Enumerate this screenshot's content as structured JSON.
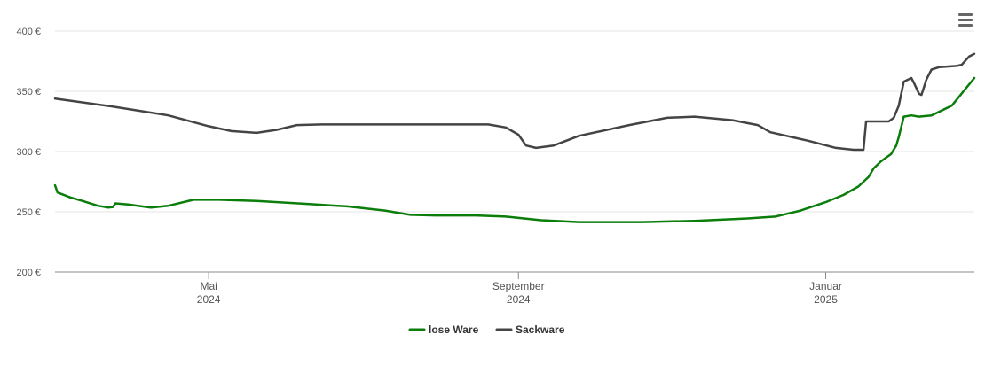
{
  "chart_data": {
    "type": "line",
    "title": "",
    "xlabel": "",
    "ylabel": "",
    "x_range": [
      "2024-03-01",
      "2025-03-01"
    ],
    "ylim": [
      200,
      400
    ],
    "y_ticks": [
      {
        "value": 200,
        "label": "200 €"
      },
      {
        "value": 250,
        "label": "250 €"
      },
      {
        "value": 300,
        "label": "300 €"
      },
      {
        "value": 350,
        "label": "350 €"
      },
      {
        "value": 400,
        "label": "400 €"
      }
    ],
    "x_ticks": [
      {
        "date": "2024-05-01",
        "line1": "Mai",
        "line2": "2024"
      },
      {
        "date": "2024-09-01",
        "line1": "September",
        "line2": "2024"
      },
      {
        "date": "2025-01-01",
        "line1": "Januar",
        "line2": "2025"
      }
    ],
    "grid": true,
    "legend_position": "bottom-center",
    "series": [
      {
        "name": "lose Ware",
        "color": "#0a7d0a",
        "points": [
          [
            "2024-03-01",
            272
          ],
          [
            "2024-03-02",
            266
          ],
          [
            "2024-03-07",
            262
          ],
          [
            "2024-03-12",
            259
          ],
          [
            "2024-03-18",
            255
          ],
          [
            "2024-03-22",
            253.5
          ],
          [
            "2024-03-24",
            254
          ],
          [
            "2024-03-25",
            257
          ],
          [
            "2024-03-30",
            256
          ],
          [
            "2024-04-08",
            253.5
          ],
          [
            "2024-04-15",
            255
          ],
          [
            "2024-04-25",
            260
          ],
          [
            "2024-05-05",
            260
          ],
          [
            "2024-05-20",
            259
          ],
          [
            "2024-06-10",
            256.5
          ],
          [
            "2024-06-25",
            254.5
          ],
          [
            "2024-07-10",
            251
          ],
          [
            "2024-07-20",
            247.5
          ],
          [
            "2024-07-30",
            247
          ],
          [
            "2024-08-15",
            247
          ],
          [
            "2024-08-27",
            246
          ],
          [
            "2024-09-10",
            243
          ],
          [
            "2024-09-25",
            241.5
          ],
          [
            "2024-10-20",
            241.5
          ],
          [
            "2024-11-10",
            242.5
          ],
          [
            "2024-12-01",
            244.5
          ],
          [
            "2024-12-12",
            246
          ],
          [
            "2024-12-22",
            251
          ],
          [
            "2025-01-01",
            258
          ],
          [
            "2025-01-08",
            264
          ],
          [
            "2025-01-14",
            271
          ],
          [
            "2025-01-18",
            279
          ],
          [
            "2025-01-20",
            286
          ],
          [
            "2025-01-23",
            292
          ],
          [
            "2025-01-27",
            298
          ],
          [
            "2025-01-29",
            305
          ],
          [
            "2025-01-30",
            312
          ],
          [
            "2025-02-01",
            329
          ],
          [
            "2025-02-04",
            330
          ],
          [
            "2025-02-07",
            329
          ],
          [
            "2025-02-12",
            330
          ],
          [
            "2025-02-20",
            338
          ],
          [
            "2025-03-01",
            361
          ]
        ]
      },
      {
        "name": "Sackware",
        "color": "#444444",
        "points": [
          [
            "2024-03-01",
            344
          ],
          [
            "2024-03-25",
            337
          ],
          [
            "2024-04-15",
            330
          ],
          [
            "2024-05-01",
            321
          ],
          [
            "2024-05-10",
            317
          ],
          [
            "2024-05-20",
            315.5
          ],
          [
            "2024-05-28",
            318
          ],
          [
            "2024-06-05",
            322
          ],
          [
            "2024-06-15",
            322.5
          ],
          [
            "2024-07-15",
            322.5
          ],
          [
            "2024-08-10",
            322.5
          ],
          [
            "2024-08-20",
            322.5
          ],
          [
            "2024-08-27",
            320
          ],
          [
            "2024-09-01",
            314
          ],
          [
            "2024-09-04",
            305
          ],
          [
            "2024-09-08",
            303
          ],
          [
            "2024-09-15",
            305
          ],
          [
            "2024-09-25",
            313
          ],
          [
            "2024-10-15",
            322
          ],
          [
            "2024-10-30",
            328
          ],
          [
            "2024-11-10",
            329
          ],
          [
            "2024-11-25",
            326
          ],
          [
            "2024-12-05",
            322
          ],
          [
            "2024-12-10",
            316
          ],
          [
            "2024-12-25",
            309
          ],
          [
            "2025-01-05",
            303
          ],
          [
            "2025-01-12",
            301.5
          ],
          [
            "2025-01-16",
            301.5
          ],
          [
            "2025-01-17",
            325
          ],
          [
            "2025-01-26",
            325
          ],
          [
            "2025-01-28",
            328
          ],
          [
            "2025-01-30",
            338
          ],
          [
            "2025-02-01",
            358
          ],
          [
            "2025-02-04",
            361
          ],
          [
            "2025-02-05",
            357
          ],
          [
            "2025-02-07",
            348
          ],
          [
            "2025-02-08",
            347
          ],
          [
            "2025-02-10",
            360
          ],
          [
            "2025-02-12",
            368
          ],
          [
            "2025-02-15",
            370
          ],
          [
            "2025-02-22",
            371
          ],
          [
            "2025-02-24",
            372
          ],
          [
            "2025-02-27",
            379
          ],
          [
            "2025-03-01",
            381
          ]
        ]
      }
    ]
  }
}
